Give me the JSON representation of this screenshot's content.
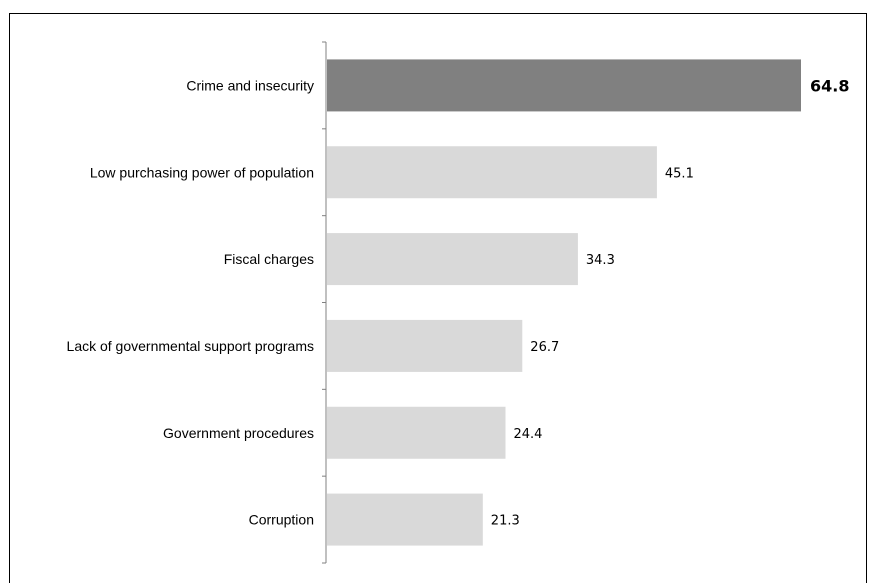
{
  "chart_data": {
    "type": "bar",
    "orientation": "horizontal",
    "categories": [
      "Crime and insecurity",
      "Low purchasing power of population",
      "Fiscal charges",
      "Lack of governmental support programs",
      "Government procedures",
      "Corruption"
    ],
    "values": [
      64.8,
      45.1,
      34.3,
      26.7,
      24.4,
      21.3
    ],
    "value_labels": [
      "64.8",
      "45.1",
      "34.3",
      "26.7",
      "24.4",
      "21.3"
    ],
    "highlight_index": 0,
    "xlim": [
      0,
      70
    ],
    "grid": false,
    "legend": "none",
    "colors": {
      "highlight": "#808080",
      "default": "#d9d9d9",
      "axis": "#808080"
    }
  }
}
